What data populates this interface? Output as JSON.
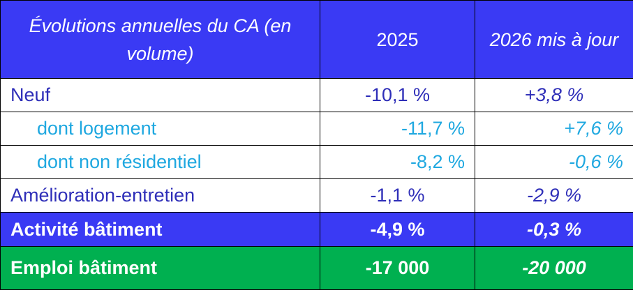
{
  "table": {
    "header": [
      "Évolutions annuelles du CA (en volume)",
      "2025",
      "2026 mis à jour"
    ],
    "rows": [
      [
        "Neuf",
        "-10,1 %",
        "+3,8 %"
      ],
      [
        "dont logement",
        "-11,7 %",
        "+7,6 %"
      ],
      [
        "dont non résidentiel",
        "-8,2 %",
        "-0,6 %"
      ],
      [
        "Amélioration-entretien",
        "-1,1 %",
        "-2,9 %"
      ],
      [
        "Activité bâtiment",
        "-4,9 %",
        "-0,3 %"
      ],
      [
        "Emploi bâtiment",
        "-17 000",
        "-20 000"
      ]
    ]
  }
}
